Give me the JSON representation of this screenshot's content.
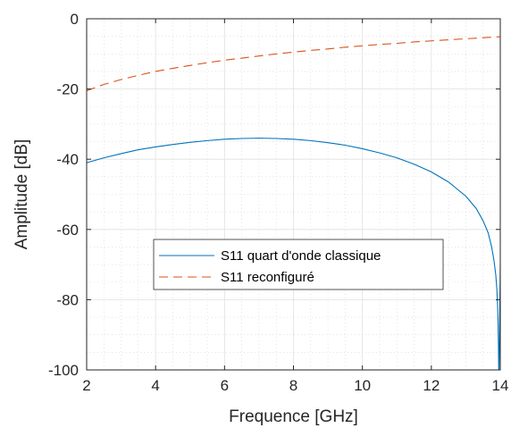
{
  "chart_data": {
    "type": "line",
    "title": "",
    "xlabel": "Frequence [GHz]",
    "ylabel": "Amplitude [dB]",
    "xlim": [
      2,
      14
    ],
    "ylim": [
      -100,
      0
    ],
    "xticks": [
      2,
      4,
      6,
      8,
      10,
      12,
      14
    ],
    "yticks": [
      -100,
      -80,
      -60,
      -40,
      -20,
      0
    ],
    "grid": true,
    "minor_grid": true,
    "legend_position": "center",
    "series": [
      {
        "name": "S11 quart d'onde classique",
        "color": "#0072bd",
        "style": "solid",
        "x": [
          2,
          2.5,
          3,
          3.5,
          4,
          4.5,
          5,
          5.5,
          6,
          6.5,
          7,
          7.5,
          8,
          8.5,
          9,
          9.5,
          10,
          10.5,
          11,
          11.5,
          12,
          12.5,
          13,
          13.3,
          13.5,
          13.65,
          13.75,
          13.82,
          13.87,
          13.9,
          13.92,
          13.935,
          13.945,
          13.955,
          13.965,
          13.975,
          13.985,
          13.995,
          14
        ],
        "y": [
          -41,
          -39.6,
          -38.4,
          -37.3,
          -36.5,
          -35.8,
          -35.2,
          -34.7,
          -34.3,
          -34.1,
          -34,
          -34.1,
          -34.3,
          -34.7,
          -35.3,
          -36,
          -37,
          -38.2,
          -39.6,
          -41.4,
          -43.6,
          -46.5,
          -50.5,
          -54,
          -57.5,
          -61,
          -65,
          -69,
          -73,
          -77,
          -81,
          -86,
          -92,
          -100,
          -100,
          -92,
          -84,
          -75,
          -70
        ]
      },
      {
        "name": "S11 reconfiguré",
        "color": "#d95319",
        "style": "dashed",
        "x": [
          2,
          2.5,
          3,
          3.5,
          4,
          4.5,
          5,
          5.5,
          6,
          6.5,
          7,
          7.5,
          8,
          8.5,
          9,
          9.5,
          10,
          10.5,
          11,
          11.5,
          12,
          12.5,
          13,
          13.5,
          14
        ],
        "y": [
          -20.5,
          -18.7,
          -17.3,
          -16.1,
          -15,
          -14.1,
          -13.3,
          -12.5,
          -11.8,
          -11.2,
          -10.6,
          -10,
          -9.5,
          -9,
          -8.6,
          -8.1,
          -7.7,
          -7.3,
          -7,
          -6.6,
          -6.3,
          -6,
          -5.7,
          -5.4,
          -5.1
        ]
      }
    ]
  }
}
